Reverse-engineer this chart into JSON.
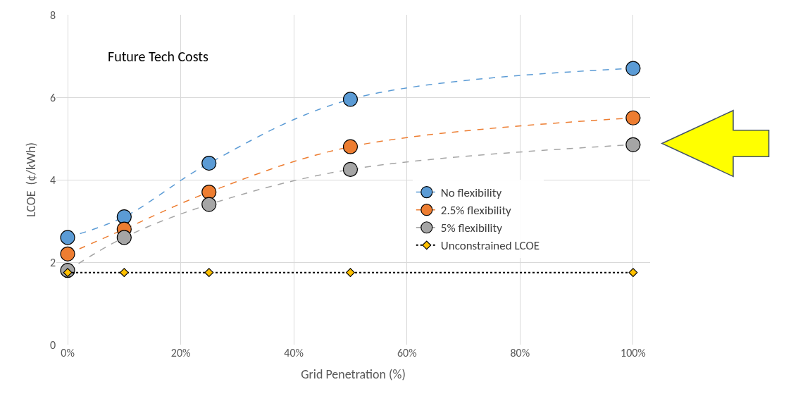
{
  "chart_data": {
    "type": "line",
    "title": "Future Tech Costs",
    "xlabel": "Grid Penetration (%)",
    "ylabel": "LCOE  (¢/kWh)",
    "x": [
      0,
      10,
      25,
      50,
      100
    ],
    "series": [
      {
        "name": "No flexibility",
        "color": "#5b9bd5",
        "values": [
          2.6,
          3.1,
          4.4,
          5.95,
          6.7
        ],
        "marker": "circle",
        "line_style": "dashed"
      },
      {
        "name": "2.5% flexibility",
        "color": "#ed7d31",
        "values": [
          2.2,
          2.8,
          3.7,
          4.8,
          5.5
        ],
        "marker": "circle",
        "line_style": "dashed"
      },
      {
        "name": "5% flexibility",
        "color": "#a5a5a5",
        "values": [
          1.8,
          2.6,
          3.4,
          4.25,
          4.85
        ],
        "marker": "circle",
        "line_style": "dashed"
      },
      {
        "name": "Unconstrained LCOE",
        "color": "#ffc000",
        "values": [
          1.75,
          1.75,
          1.75,
          1.75,
          1.75
        ],
        "marker": "diamond",
        "line_style": "dotted"
      }
    ],
    "xlim": [
      -2,
      103
    ],
    "xticks": [
      {
        "value": 0,
        "label": "0%"
      },
      {
        "value": 20,
        "label": "20%"
      },
      {
        "value": 40,
        "label": "40%"
      },
      {
        "value": 60,
        "label": "60%"
      },
      {
        "value": 80,
        "label": "80%"
      },
      {
        "value": 100,
        "label": "100%"
      }
    ],
    "ylim": [
      0,
      8
    ],
    "yticks": [
      0,
      2,
      4,
      6,
      8
    ],
    "grid": true,
    "legend": "right"
  }
}
